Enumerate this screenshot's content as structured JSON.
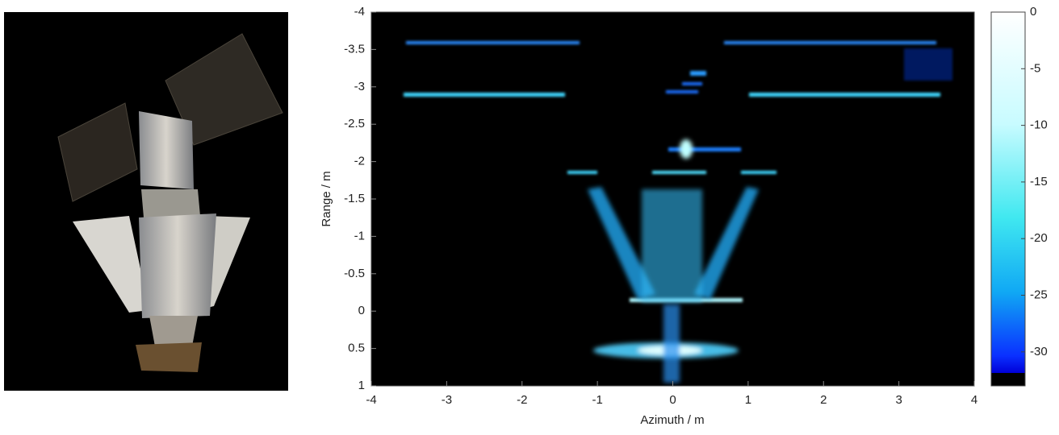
{
  "chart_data": {
    "type": "image",
    "xlabel": "Azimuth / m",
    "ylabel": "Range / m",
    "xlim": [
      -4,
      4
    ],
    "xticks": [
      -4,
      -3,
      -2,
      -1,
      0,
      1,
      2,
      3,
      4
    ],
    "ylim": [
      -4,
      1
    ],
    "yticks": [
      -4,
      -3.5,
      -3,
      -2.5,
      -2,
      -1.5,
      -1,
      -0.5,
      0,
      0.5,
      1
    ],
    "colorbar": {
      "clim": [
        -33,
        0
      ],
      "ticks": [
        0,
        -5,
        -10,
        -15,
        -20,
        -25,
        -30
      ]
    }
  }
}
